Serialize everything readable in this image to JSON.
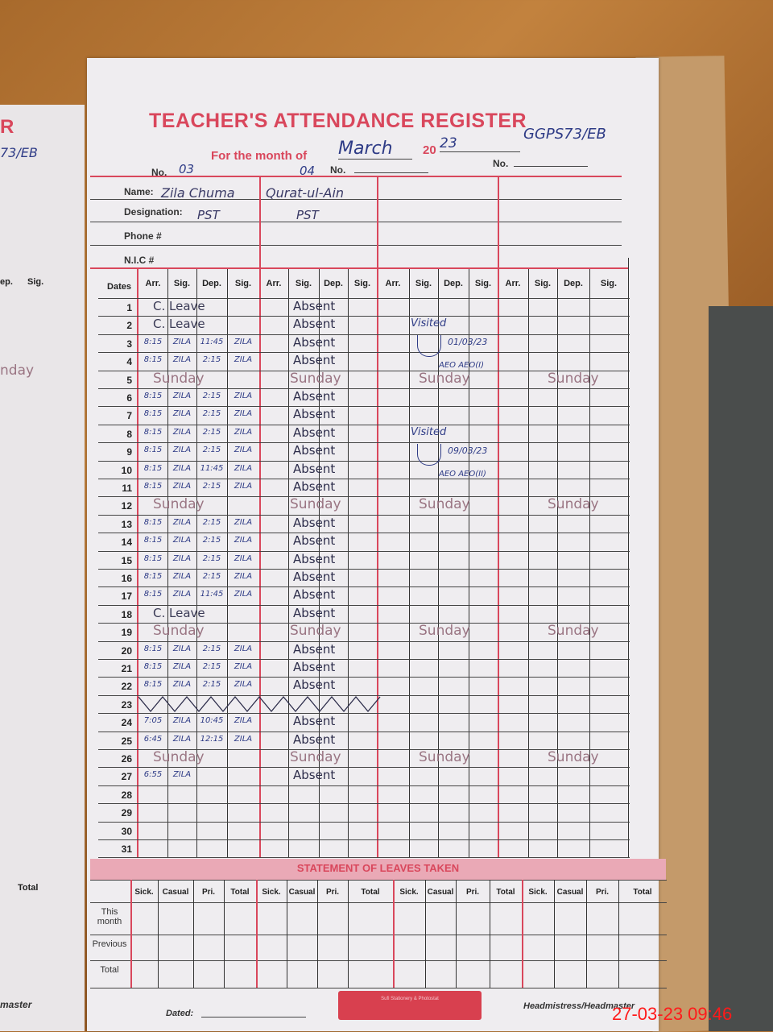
{
  "register": {
    "title": "TEACHER'S ATTENDANCE REGISTER",
    "month_label": "For the month of",
    "month_value": "March",
    "year_prefix": "20",
    "year_value": "23",
    "school_code": "GGPS73/EB",
    "no_label": "No.",
    "no_values": [
      "03",
      "04",
      "",
      ""
    ],
    "name_label": "Name:",
    "designation_label": "Designation:",
    "phone_label": "Phone #",
    "nic_label": "N.I.C #",
    "teachers": [
      {
        "name": "Zila Chuma",
        "designation": "PST"
      },
      {
        "name": "Qurat-ul-Ain",
        "designation": "PST"
      },
      {
        "name": "",
        "designation": ""
      },
      {
        "name": "",
        "designation": ""
      }
    ]
  },
  "grid": {
    "dates_header": "Dates",
    "column_headers": [
      "Arr.",
      "Sig.",
      "Dep.",
      "Sig."
    ],
    "rows": [
      {
        "d": "1",
        "t1": {
          "span": "C. Leave"
        },
        "t2": "Absent"
      },
      {
        "d": "2",
        "t1": {
          "span": "C. Leave"
        },
        "t2": "Absent"
      },
      {
        "d": "3",
        "t1": {
          "arr": "8:15",
          "s1": "ZILA",
          "dep": "11:45",
          "s2": "ZILA"
        },
        "t2": "Absent"
      },
      {
        "d": "4",
        "t1": {
          "arr": "8:15",
          "s1": "ZILA",
          "dep": "2:15",
          "s2": "ZILA"
        },
        "t2": "Absent"
      },
      {
        "d": "5",
        "sunday": true
      },
      {
        "d": "6",
        "t1": {
          "arr": "8:15",
          "s1": "ZILA",
          "dep": "2:15",
          "s2": "ZILA"
        },
        "t2": "Absent"
      },
      {
        "d": "7",
        "t1": {
          "arr": "8:15",
          "s1": "ZILA",
          "dep": "2:15",
          "s2": "ZILA"
        },
        "t2": "Absent"
      },
      {
        "d": "8",
        "t1": {
          "arr": "8:15",
          "s1": "ZILA",
          "dep": "2:15",
          "s2": "ZILA"
        },
        "t2": "Absent"
      },
      {
        "d": "9",
        "t1": {
          "arr": "8:15",
          "s1": "ZILA",
          "dep": "2:15",
          "s2": "ZILA"
        },
        "t2": "Absent"
      },
      {
        "d": "10",
        "t1": {
          "arr": "8:15",
          "s1": "ZILA",
          "dep": "11:45",
          "s2": "ZILA"
        },
        "t2": "Absent"
      },
      {
        "d": "11",
        "t1": {
          "arr": "8:15",
          "s1": "ZILA",
          "dep": "2:15",
          "s2": "ZILA"
        },
        "t2": "Absent"
      },
      {
        "d": "12",
        "sunday": true
      },
      {
        "d": "13",
        "t1": {
          "arr": "8:15",
          "s1": "ZILA",
          "dep": "2:15",
          "s2": "ZILA"
        },
        "t2": "Absent"
      },
      {
        "d": "14",
        "t1": {
          "arr": "8:15",
          "s1": "ZILA",
          "dep": "2:15",
          "s2": "ZILA"
        },
        "t2": "Absent"
      },
      {
        "d": "15",
        "t1": {
          "arr": "8:15",
          "s1": "ZILA",
          "dep": "2:15",
          "s2": "ZILA"
        },
        "t2": "Absent"
      },
      {
        "d": "16",
        "t1": {
          "arr": "8:15",
          "s1": "ZILA",
          "dep": "2:15",
          "s2": "ZILA"
        },
        "t2": "Absent"
      },
      {
        "d": "17",
        "t1": {
          "arr": "8:15",
          "s1": "ZILA",
          "dep": "11:45",
          "s2": "ZILA"
        },
        "t2": "Absent"
      },
      {
        "d": "18",
        "t1": {
          "span": "C. Leave"
        },
        "t2": "Absent"
      },
      {
        "d": "19",
        "sunday": true
      },
      {
        "d": "20",
        "t1": {
          "arr": "8:15",
          "s1": "ZILA",
          "dep": "2:15",
          "s2": "ZILA"
        },
        "t2": "Absent"
      },
      {
        "d": "21",
        "t1": {
          "arr": "8:15",
          "s1": "ZILA",
          "dep": "2:15",
          "s2": "ZILA"
        },
        "t2": "Absent"
      },
      {
        "d": "22",
        "t1": {
          "arr": "8:15",
          "s1": "ZILA",
          "dep": "2:15",
          "s2": "ZILA"
        },
        "t2": "Absent"
      },
      {
        "d": "23",
        "zigzag": true
      },
      {
        "d": "24",
        "t1": {
          "arr": "7:05",
          "s1": "ZILA",
          "dep": "10:45",
          "s2": "ZILA"
        },
        "t2": "Absent"
      },
      {
        "d": "25",
        "t1": {
          "arr": "6:45",
          "s1": "ZILA",
          "dep": "12:15",
          "s2": "ZILA"
        },
        "t2": "Absent"
      },
      {
        "d": "26",
        "sunday": true
      },
      {
        "d": "27",
        "t1": {
          "arr": "6:55",
          "s1": "ZILA"
        },
        "t2": "Absent"
      },
      {
        "d": "28"
      },
      {
        "d": "29"
      },
      {
        "d": "30"
      },
      {
        "d": "31"
      }
    ],
    "sunday_label": "Sunday",
    "visits": [
      {
        "label": "Visited",
        "date": "01/03/23",
        "by": "AEO AEO(I)"
      },
      {
        "label": "Visited",
        "date": "09/03/23",
        "by": "AEO AEO(II)"
      }
    ]
  },
  "leaves": {
    "title": "STATEMENT OF LEAVES TAKEN",
    "headers": [
      "Sick.",
      "Casual",
      "Pri.",
      "Total"
    ],
    "row_labels": [
      "This month",
      "Previous",
      "Total"
    ]
  },
  "footer": {
    "dated_label": "Dated:",
    "signatory": "Headmistress/Headmaster",
    "stamp_text": "Sufi Stationery & Photostat"
  },
  "left_page": {
    "title_fragment": "R",
    "code_fragment": "73/EB",
    "headers": [
      "ep.",
      "Sig."
    ],
    "sunday_fragment": "nday",
    "total_fragment": "Total",
    "footer_fragment": "master"
  },
  "timestamp": "27-03-23  09:46",
  "colors": {
    "form_red": "#d9475c",
    "ink_blue": "#2e3b86",
    "timestamp_red": "#ff1a1a"
  }
}
